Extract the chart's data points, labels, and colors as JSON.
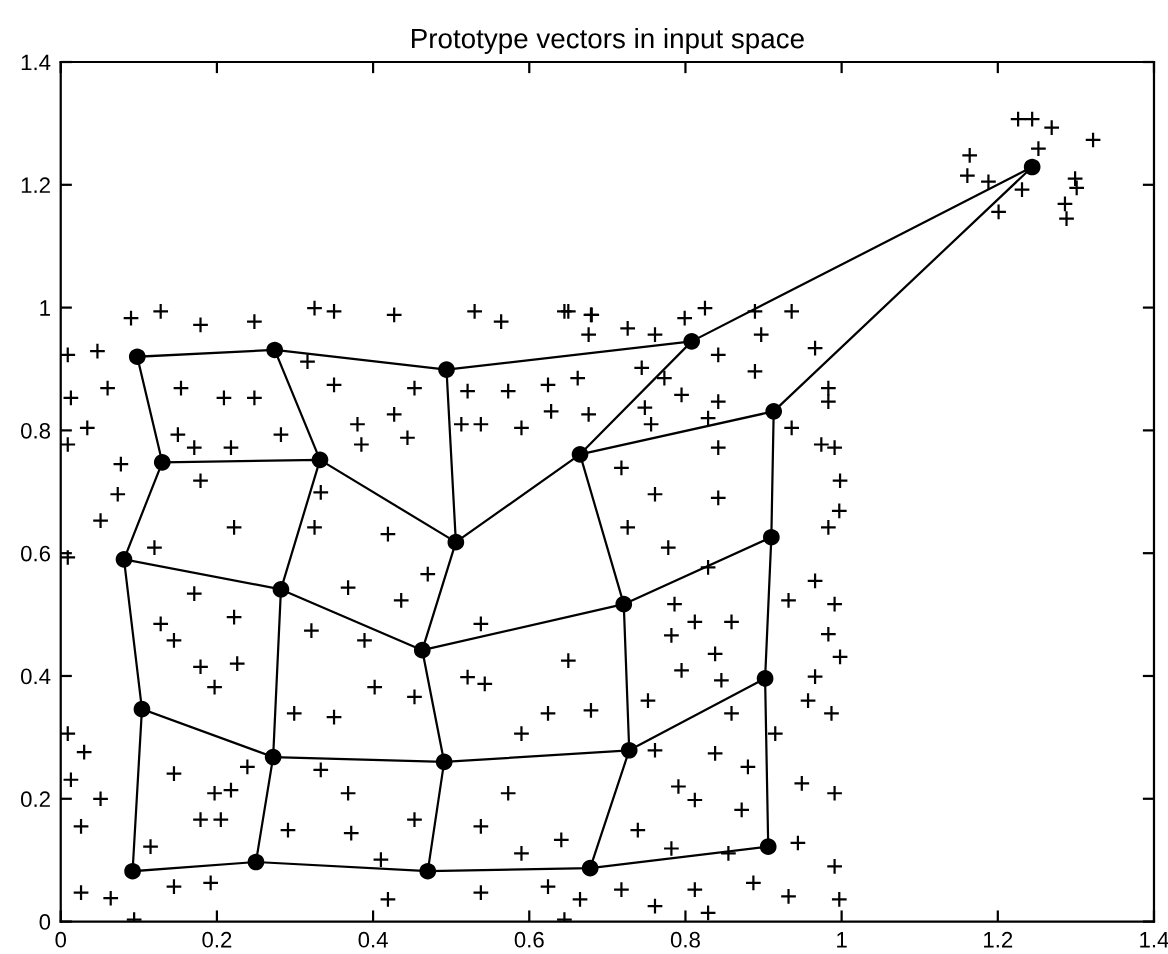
{
  "chart_data": {
    "type": "scatter",
    "title": "Prototype vectors in input space",
    "xlim": [
      0,
      1.4
    ],
    "ylim": [
      0,
      1.4
    ],
    "xticks": [
      0,
      0.2,
      0.4,
      0.6,
      0.8,
      1,
      1.2,
      1.4
    ],
    "yticks": [
      0,
      0.2,
      0.4,
      0.6,
      0.8,
      1,
      1.2,
      1.4
    ],
    "grid": false,
    "legend": false,
    "series": [
      {
        "marker": "cross",
        "color": "#000000",
        "x": [
          1.226,
          1.244,
          1.269,
          1.322,
          1.252,
          1.164,
          1.161,
          1.188,
          1.231,
          1.201,
          1.299,
          1.301,
          1.286,
          1.288,
          0.009,
          0.051,
          0.073,
          0.009,
          0.03,
          0.013,
          0.051,
          0.026,
          0.026,
          0.064,
          0.128,
          0.145,
          0.179,
          0.197,
          0.226,
          0.171,
          0.222,
          0.145,
          0.197,
          0.218,
          0.239,
          0.179,
          0.205,
          0.115,
          0.145,
          0.192,
          0.299,
          0.35,
          0.321,
          0.368,
          0.389,
          0.402,
          0.453,
          0.521,
          0.543,
          0.333,
          0.368,
          0.372,
          0.291,
          0.453,
          0.41,
          0.419,
          0.538,
          0.573,
          0.59,
          0.624,
          0.65,
          0.538,
          0.436,
          0.47,
          0.419,
          0.325,
          0.222,
          0.12,
          0.333,
          0.538,
          0.624,
          0.641,
          0.59,
          0.645,
          0.094,
          0.09,
          0.128,
          0.179,
          0.248,
          0.325,
          0.35,
          0.427,
          0.53,
          0.564,
          0.645,
          0.679,
          0.009,
          0.047,
          0.013,
          0.06,
          0.154,
          0.209,
          0.248,
          0.35,
          0.316,
          0.453,
          0.521,
          0.573,
          0.624,
          0.034,
          0.009,
          0.15,
          0.171,
          0.218,
          0.282,
          0.38,
          0.385,
          0.513,
          0.538,
          0.59,
          0.628,
          0.077,
          0.179,
          0.444,
          0.427,
          0.65,
          0.68,
          0.676,
          0.726,
          0.761,
          0.799,
          0.825,
          0.889,
          0.936,
          0.966,
          0.897,
          0.744,
          0.773,
          0.842,
          0.889,
          0.662,
          0.795,
          0.983,
          0.983,
          0.842,
          0.748,
          0.756,
          0.829,
          0.936,
          0.974,
          0.991,
          0.998,
          0.842,
          0.718,
          0.676,
          0.761,
          0.842,
          0.997,
          0.983,
          0.726,
          0.778,
          0.829,
          0.966,
          0.932,
          0.991,
          0.786,
          0.812,
          0.859,
          0.983,
          0.998,
          0.782,
          0.838,
          0.966,
          0.795,
          0.846,
          0.957,
          0.987,
          0.679,
          0.752,
          0.859,
          0.915,
          0.838,
          0.761,
          0.991,
          0.949,
          0.88,
          0.791,
          0.812,
          0.872,
          0.739,
          0.782,
          0.855,
          0.944,
          0.991,
          0.812,
          0.887,
          0.761,
          0.829,
          0.932,
          0.997,
          0.718,
          0.665
        ],
        "values": [
          1.307,
          1.307,
          1.293,
          1.273,
          1.259,
          1.248,
          1.215,
          1.205,
          1.192,
          1.156,
          1.21,
          1.195,
          1.169,
          1.145,
          0.593,
          0.653,
          0.696,
          0.306,
          0.276,
          0.231,
          0.2,
          0.155,
          0.047,
          0.038,
          0.485,
          0.458,
          0.415,
          0.382,
          0.42,
          0.534,
          0.496,
          0.241,
          0.209,
          0.214,
          0.252,
          0.166,
          0.166,
          0.122,
          0.057,
          0.063,
          0.339,
          0.333,
          0.474,
          0.544,
          0.458,
          0.382,
          0.366,
          0.398,
          0.387,
          0.247,
          0.209,
          0.144,
          0.149,
          0.166,
          0.101,
          0.036,
          0.155,
          0.209,
          0.306,
          0.339,
          0.425,
          0.485,
          0.523,
          0.566,
          0.631,
          0.642,
          0.642,
          0.609,
          0.699,
          0.047,
          0.057,
          0.133,
          0.111,
          0.003,
          0.003,
          0.983,
          0.994,
          0.972,
          0.977,
          0.999,
          0.994,
          0.988,
          0.994,
          0.977,
          0.994,
          0.988,
          0.923,
          0.929,
          0.853,
          0.869,
          0.869,
          0.853,
          0.853,
          0.874,
          0.912,
          0.869,
          0.864,
          0.864,
          0.874,
          0.804,
          0.777,
          0.793,
          0.772,
          0.772,
          0.793,
          0.81,
          0.777,
          0.81,
          0.81,
          0.804,
          0.831,
          0.745,
          0.718,
          0.788,
          0.826,
          0.994,
          0.988,
          0.956,
          0.966,
          0.956,
          0.983,
          0.999,
          0.994,
          0.994,
          0.934,
          0.956,
          0.902,
          0.885,
          0.923,
          0.896,
          0.885,
          0.858,
          0.869,
          0.847,
          0.847,
          0.837,
          0.81,
          0.82,
          0.804,
          0.777,
          0.772,
          0.718,
          0.772,
          0.739,
          0.826,
          0.696,
          0.69,
          0.669,
          0.642,
          0.642,
          0.609,
          0.577,
          0.555,
          0.523,
          0.517,
          0.517,
          0.488,
          0.488,
          0.468,
          0.431,
          0.466,
          0.436,
          0.399,
          0.409,
          0.393,
          0.36,
          0.339,
          0.344,
          0.36,
          0.339,
          0.306,
          0.274,
          0.279,
          0.209,
          0.225,
          0.252,
          0.22,
          0.198,
          0.182,
          0.149,
          0.119,
          0.111,
          0.128,
          0.09,
          0.052,
          0.063,
          0.025,
          0.014,
          0.041,
          0.036,
          0.052,
          0.036
        ]
      },
      {
        "type": "line",
        "marker": "none",
        "color": "#000000",
        "x": [
          0.098,
          0.274,
          0.494,
          0.808,
          1.244
        ],
        "values": [
          0.92,
          0.931,
          0.899,
          0.945,
          1.229
        ]
      },
      {
        "type": "line",
        "marker": "none",
        "color": "#000000",
        "x": [
          0.13,
          0.332,
          0.506,
          0.665,
          0.913
        ],
        "values": [
          0.748,
          0.752,
          0.618,
          0.761,
          0.831
        ]
      },
      {
        "type": "line",
        "marker": "none",
        "color": "#000000",
        "x": [
          0.081,
          0.282,
          0.463,
          0.721,
          0.91
        ],
        "values": [
          0.59,
          0.541,
          0.442,
          0.517,
          0.626
        ]
      },
      {
        "type": "line",
        "marker": "none",
        "color": "#000000",
        "x": [
          0.104,
          0.272,
          0.491,
          0.728,
          0.902
        ],
        "values": [
          0.346,
          0.268,
          0.26,
          0.279,
          0.396
        ]
      },
      {
        "type": "line",
        "marker": "none",
        "color": "#000000",
        "x": [
          0.092,
          0.25,
          0.47,
          0.678,
          0.906
        ],
        "values": [
          0.082,
          0.097,
          0.082,
          0.087,
          0.122
        ]
      },
      {
        "type": "line",
        "marker": "none",
        "color": "#000000",
        "x": [
          0.098,
          0.13,
          0.081,
          0.104,
          0.092
        ],
        "values": [
          0.92,
          0.748,
          0.59,
          0.346,
          0.082
        ]
      },
      {
        "type": "line",
        "marker": "none",
        "color": "#000000",
        "x": [
          0.274,
          0.332,
          0.282,
          0.272,
          0.25
        ],
        "values": [
          0.931,
          0.752,
          0.541,
          0.268,
          0.097
        ]
      },
      {
        "type": "line",
        "marker": "none",
        "color": "#000000",
        "x": [
          0.494,
          0.506,
          0.463,
          0.491,
          0.47
        ],
        "values": [
          0.899,
          0.618,
          0.442,
          0.26,
          0.082
        ]
      },
      {
        "type": "line",
        "marker": "none",
        "color": "#000000",
        "x": [
          0.808,
          0.665,
          0.721,
          0.728,
          0.678
        ],
        "values": [
          0.945,
          0.761,
          0.517,
          0.279,
          0.087
        ]
      },
      {
        "type": "line",
        "marker": "none",
        "color": "#000000",
        "x": [
          1.244,
          0.913,
          0.91,
          0.902,
          0.906
        ],
        "values": [
          1.229,
          0.831,
          0.626,
          0.396,
          0.122
        ]
      },
      {
        "marker": "circle",
        "color": "#000000",
        "x": [
          0.098,
          0.274,
          0.494,
          0.808,
          1.244,
          0.13,
          0.332,
          0.506,
          0.665,
          0.913,
          0.081,
          0.282,
          0.463,
          0.721,
          0.91,
          0.104,
          0.272,
          0.491,
          0.728,
          0.902,
          0.092,
          0.25,
          0.47,
          0.678,
          0.906
        ],
        "values": [
          0.92,
          0.931,
          0.899,
          0.945,
          1.229,
          0.748,
          0.752,
          0.618,
          0.761,
          0.831,
          0.59,
          0.541,
          0.442,
          0.517,
          0.626,
          0.346,
          0.268,
          0.26,
          0.279,
          0.396,
          0.082,
          0.097,
          0.082,
          0.087,
          0.122
        ]
      }
    ]
  }
}
